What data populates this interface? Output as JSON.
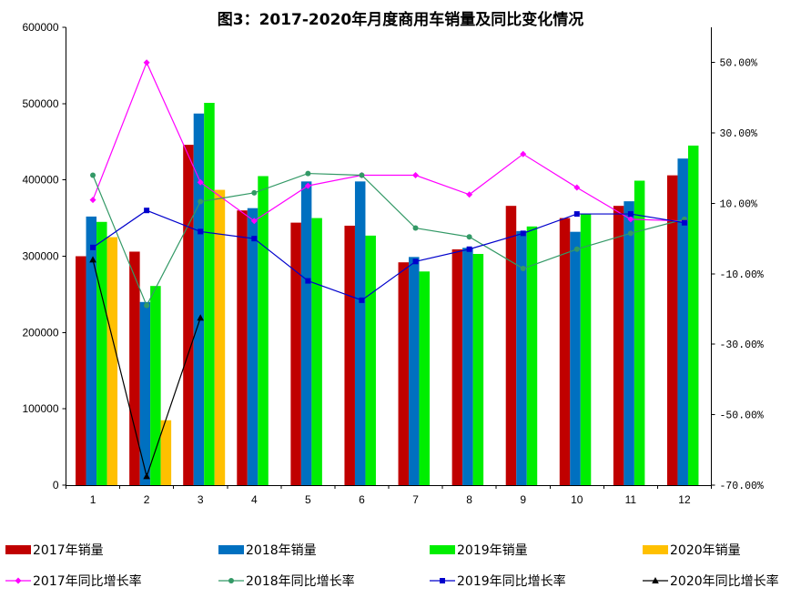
{
  "chart_data": {
    "type": "bar",
    "title": "图3：2017-2020年月度商用车销量及同比变化情况",
    "categories": [
      "1",
      "2",
      "3",
      "4",
      "5",
      "6",
      "7",
      "8",
      "9",
      "10",
      "11",
      "12"
    ],
    "ylim": [
      0,
      600000
    ],
    "yticks": [
      "0",
      "100000",
      "200000",
      "300000",
      "400000",
      "500000",
      "600000"
    ],
    "y2lim": [
      -70,
      60
    ],
    "y2ticks": [
      "-70.00%",
      "-50.00%",
      "-30.00%",
      "-10.00%",
      "10.00%",
      "30.00%",
      "50.00%"
    ],
    "series": [
      {
        "name": "2017年销量",
        "type": "bar",
        "color": "#C00000",
        "values": [
          300000,
          306000,
          446000,
          360000,
          344000,
          340000,
          292000,
          309000,
          366000,
          350000,
          366000,
          406000
        ]
      },
      {
        "name": "2018年销量",
        "type": "bar",
        "color": "#0070C0",
        "values": [
          352000,
          240000,
          487000,
          363000,
          398000,
          398000,
          299000,
          311000,
          333000,
          332000,
          372000,
          428000
        ]
      },
      {
        "name": "2019年销量",
        "type": "bar",
        "color": "#00EE00",
        "values": [
          345000,
          261000,
          501000,
          405000,
          350000,
          327000,
          280000,
          303000,
          339000,
          355000,
          399000,
          445000
        ]
      },
      {
        "name": "2020年销量",
        "type": "bar",
        "color": "#FFC000",
        "values": [
          325000,
          85000,
          387000,
          null,
          null,
          null,
          null,
          null,
          null,
          null,
          null,
          null
        ]
      },
      {
        "name": "2017年同比增长率",
        "type": "line",
        "axis": "right",
        "color": "#FF00FF",
        "marker": "diamond",
        "values": [
          11.0,
          50.0,
          16.0,
          5.0,
          15.0,
          18.0,
          18.0,
          12.5,
          24.0,
          14.5,
          5.5,
          5.0
        ]
      },
      {
        "name": "2018年同比增长率",
        "type": "line",
        "axis": "right",
        "color": "#339966",
        "marker": "circle",
        "values": [
          18.0,
          -19.0,
          10.5,
          13.0,
          18.5,
          18.0,
          3.0,
          0.5,
          -8.5,
          -3.0,
          1.5,
          5.5
        ]
      },
      {
        "name": "2019年同比增长率",
        "type": "line",
        "axis": "right",
        "color": "#0000CC",
        "marker": "square",
        "values": [
          -2.5,
          8.0,
          2.0,
          0.0,
          -12.0,
          -17.5,
          -6.5,
          -3.0,
          1.5,
          7.0,
          7.0,
          4.5
        ]
      },
      {
        "name": "2020年同比增长率",
        "type": "line",
        "axis": "right",
        "color": "#000000",
        "marker": "triangle",
        "values": [
          -6.0,
          -67.5,
          -22.5,
          null,
          null,
          null,
          null,
          null,
          null,
          null,
          null,
          null
        ]
      }
    ]
  }
}
